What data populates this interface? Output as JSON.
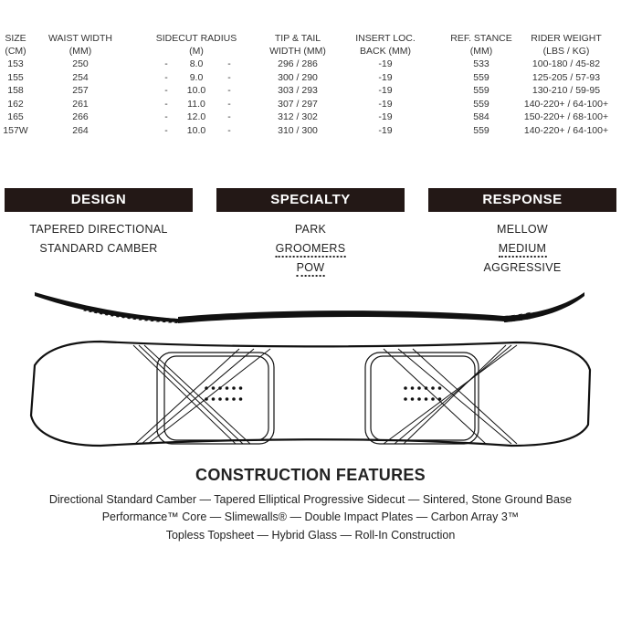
{
  "specs_table": {
    "headers": [
      [
        "SIZE",
        "(CM)"
      ],
      [
        "WAIST WIDTH",
        "(MM)"
      ],
      [
        "SIDECUT RADIUS",
        "(M)"
      ],
      [
        "TIP & TAIL",
        "WIDTH (MM)"
      ],
      [
        "INSERT LOC.",
        "BACK (MM)"
      ],
      [
        "REF. STANCE",
        "(MM)"
      ],
      [
        "RIDER WEIGHT",
        "(LBS / KG)"
      ]
    ],
    "rows": [
      [
        "153",
        "250",
        "8.0",
        "296 / 286",
        "-19",
        "533",
        "100-180 / 45-82"
      ],
      [
        "155",
        "254",
        "9.0",
        "300 / 290",
        "-19",
        "559",
        "125-205 / 57-93"
      ],
      [
        "158",
        "257",
        "10.0",
        "303 / 293",
        "-19",
        "559",
        "130-210 / 59-95"
      ],
      [
        "162",
        "261",
        "11.0",
        "307 / 297",
        "-19",
        "559",
        "140-220+ / 64-100+"
      ],
      [
        "165",
        "266",
        "12.0",
        "312 / 302",
        "-19",
        "584",
        "150-220+ / 68-100+"
      ],
      [
        "157W",
        "264",
        "10.0",
        "310 / 300",
        "-19",
        "559",
        "140-220+ / 64-100+"
      ]
    ],
    "sidecut_dash": "-"
  },
  "sections": [
    {
      "title": "DESIGN",
      "items": [
        {
          "label": "TAPERED DIRECTIONAL",
          "selected": false
        },
        {
          "label": "STANDARD CAMBER",
          "selected": false
        }
      ]
    },
    {
      "title": "SPECIALTY",
      "items": [
        {
          "label": "PARK",
          "selected": false
        },
        {
          "label": "GROOMERS",
          "selected": true
        },
        {
          "label": "POW",
          "selected": true
        }
      ]
    },
    {
      "title": "RESPONSE",
      "items": [
        {
          "label": "MELLOW",
          "selected": false
        },
        {
          "label": "MEDIUM",
          "selected": true
        },
        {
          "label": "AGGRESSIVE",
          "selected": false
        }
      ]
    }
  ],
  "construction": {
    "title": "CONSTRUCTION FEATURES",
    "lines": [
      "Directional Standard Camber — Tapered Elliptical Progressive Sidecut — Sintered, Stone Ground Base",
      "Performance™ Core — Slimewalls® — Double Impact Plates — Carbon Array 3™",
      "Topless Topsheet — Hybrid Glass — Roll-In Construction"
    ]
  },
  "colors": {
    "bar_bg": "#231816",
    "bar_text": "#ffffff",
    "text": "#222222"
  }
}
